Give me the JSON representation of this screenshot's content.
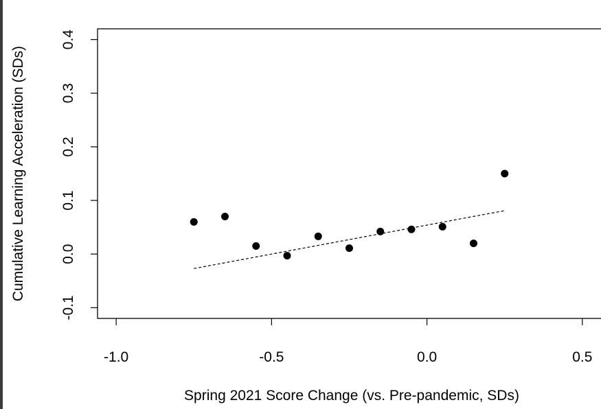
{
  "chart_data": {
    "type": "scatter",
    "xlabel": "Spring 2021 Score Change (vs. Pre-pandemic, SDs)",
    "ylabel": "Cumulative Learning Acceleration (SDs)",
    "xlim": [
      -1.06,
      0.56
    ],
    "ylim": [
      -0.12,
      0.42
    ],
    "x_ticks": [
      "-1.0",
      "-0.5",
      "0.0",
      "0.5"
    ],
    "y_ticks": [
      "-0.1",
      "0.0",
      "0.1",
      "0.2",
      "0.3",
      "0.4"
    ],
    "points": {
      "x": [
        -0.75,
        -0.65,
        -0.55,
        -0.45,
        -0.35,
        -0.25,
        -0.15,
        -0.05,
        0.05,
        0.15,
        0.25
      ],
      "y": [
        0.06,
        0.07,
        0.015,
        -0.003,
        0.033,
        0.011,
        0.042,
        0.046,
        0.051,
        0.02,
        0.15
      ]
    },
    "trend_line": {
      "style": "dashed",
      "x": [
        -0.75,
        0.25
      ],
      "y": [
        -0.027,
        0.081
      ]
    },
    "grid": false,
    "legend": "none"
  }
}
